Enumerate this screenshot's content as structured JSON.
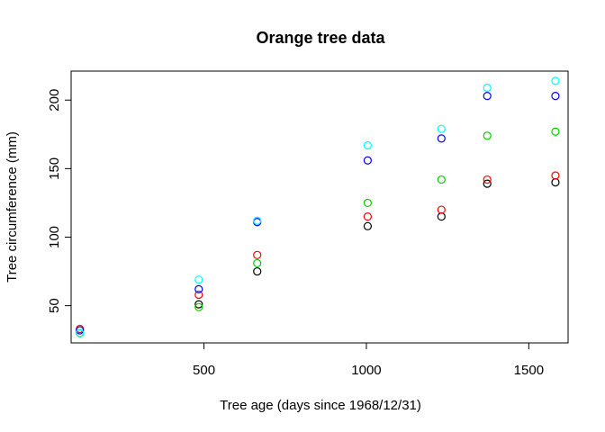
{
  "chart_data": {
    "type": "scatter",
    "title": "Orange tree data",
    "xlabel": "Tree age (days since 1968/12/31)",
    "ylabel": "Tree circumference (mm)",
    "xlim": [
      91.08,
      1620.92
    ],
    "ylim": [
      22.84,
      221.16
    ],
    "xticks": [
      500,
      1000,
      1500
    ],
    "yticks": [
      50,
      100,
      150,
      200
    ],
    "x": [
      118,
      484,
      664,
      1004,
      1231,
      1372,
      1582
    ],
    "series": [
      {
        "color": "#000000",
        "values": [
          30,
          51,
          75,
          108,
          115,
          139,
          140
        ]
      },
      {
        "color": "#DF536B",
        "values": [
          33,
          58,
          87,
          115,
          120,
          142,
          145
        ]
      },
      {
        "color": "#61D04F",
        "values": [
          30,
          49,
          81,
          125,
          142,
          174,
          177
        ]
      },
      {
        "color": "#2297E6",
        "values": [
          32,
          62,
          111,
          156,
          172,
          203,
          203
        ]
      },
      {
        "color": "#28E2E5",
        "values": [
          30,
          69,
          112,
          167,
          179,
          209,
          214
        ]
      }
    ],
    "render_colors": [
      "#000000",
      "#FF0000",
      "#00CD00",
      "#0000FF",
      "#00FFFF"
    ],
    "grid": false,
    "legend": "none"
  }
}
